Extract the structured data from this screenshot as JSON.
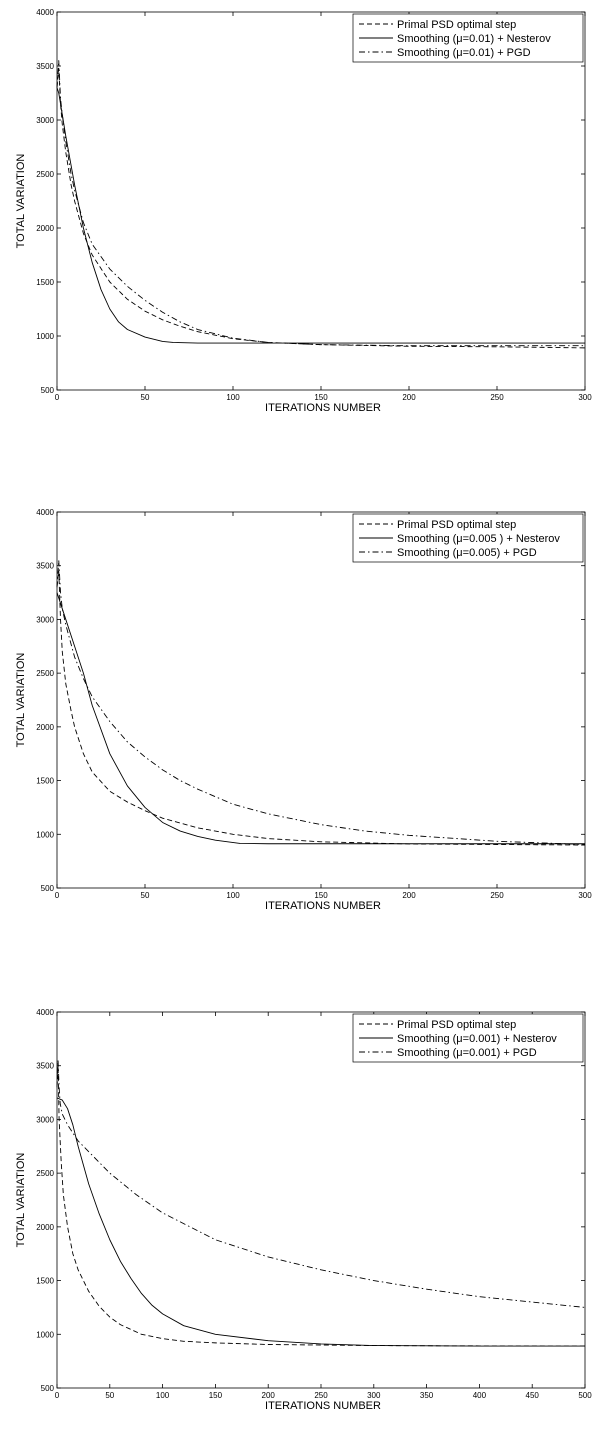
{
  "chart_data": [
    {
      "type": "line",
      "title": "",
      "xlabel": "ITERATIONS NUMBER",
      "ylabel": "TOTAL VARIATION",
      "xlim": [
        0,
        300
      ],
      "ylim": [
        500,
        4000
      ],
      "xticks": [
        0,
        50,
        100,
        150,
        200,
        250,
        300
      ],
      "yticks": [
        500,
        1000,
        1500,
        2000,
        2500,
        3000,
        3500,
        4000
      ],
      "grid": false,
      "legend_position": "top-right",
      "series": [
        {
          "name": "Primal PSD optimal step",
          "style": "dashed",
          "color": "#000000",
          "x": [
            0,
            1,
            2,
            3,
            5,
            8,
            10,
            15,
            20,
            30,
            40,
            50,
            60,
            70,
            80,
            100,
            120,
            150,
            200,
            250,
            300
          ],
          "y": [
            3300,
            3480,
            3150,
            2960,
            2700,
            2400,
            2250,
            1950,
            1750,
            1500,
            1340,
            1230,
            1150,
            1090,
            1040,
            975,
            940,
            920,
            905,
            900,
            890
          ]
        },
        {
          "name": "Smoothing (μ=0.01) + Nesterov",
          "style": "solid",
          "color": "#000000",
          "x": [
            0,
            1,
            2,
            3,
            5,
            10,
            15,
            20,
            25,
            30,
            35,
            40,
            50,
            60,
            66,
            80,
            100,
            150,
            200,
            250,
            300
          ],
          "y": [
            3300,
            3250,
            3150,
            3050,
            2850,
            2400,
            2000,
            1680,
            1430,
            1250,
            1130,
            1060,
            990,
            950,
            940,
            935,
            935,
            935,
            935,
            935,
            935
          ]
        },
        {
          "name": "Smoothing (μ=0.01) + PGD",
          "style": "dashdot",
          "color": "#000000",
          "x": [
            0,
            1,
            2,
            3,
            5,
            8,
            10,
            15,
            20,
            30,
            40,
            50,
            60,
            70,
            80,
            100,
            120,
            150,
            200,
            250,
            300
          ],
          "y": [
            3300,
            3550,
            3200,
            3050,
            2800,
            2500,
            2350,
            2050,
            1850,
            1620,
            1460,
            1330,
            1220,
            1130,
            1060,
            980,
            940,
            920,
            910,
            910,
            910
          ]
        }
      ]
    },
    {
      "type": "line",
      "title": "",
      "xlabel": "ITERATIONS NUMBER",
      "ylabel": "TOTAL VARIATION",
      "xlim": [
        0,
        300
      ],
      "ylim": [
        500,
        4000
      ],
      "xticks": [
        0,
        50,
        100,
        150,
        200,
        250,
        300
      ],
      "yticks": [
        500,
        1000,
        1500,
        2000,
        2500,
        3000,
        3500,
        4000
      ],
      "grid": false,
      "legend_position": "top-right",
      "series": [
        {
          "name": "Primal PSD optimal step",
          "style": "dashed",
          "color": "#000000",
          "x": [
            0,
            1,
            2,
            3,
            5,
            8,
            10,
            15,
            20,
            30,
            40,
            50,
            60,
            80,
            100,
            120,
            150,
            200,
            250,
            300
          ],
          "y": [
            3300,
            3450,
            3000,
            2700,
            2400,
            2150,
            2000,
            1750,
            1580,
            1400,
            1300,
            1220,
            1150,
            1060,
            1000,
            960,
            930,
            910,
            905,
            900
          ]
        },
        {
          "name": "Smoothing (μ=0.005 ) + Nesterov",
          "style": "solid",
          "color": "#000000",
          "x": [
            0,
            1,
            3,
            5,
            10,
            15,
            20,
            30,
            40,
            50,
            60,
            70,
            80,
            90,
            104,
            120,
            150,
            200,
            250,
            300
          ],
          "y": [
            3250,
            3200,
            3100,
            3000,
            2750,
            2500,
            2200,
            1750,
            1450,
            1250,
            1110,
            1030,
            980,
            945,
            915,
            912,
            912,
            912,
            912,
            912
          ]
        },
        {
          "name": "Smoothing (μ=0.005) + PGD",
          "style": "dashdot",
          "color": "#000000",
          "x": [
            0,
            1,
            2,
            3,
            5,
            10,
            15,
            20,
            30,
            40,
            50,
            60,
            70,
            80,
            100,
            120,
            150,
            175,
            200,
            250,
            300
          ],
          "y": [
            3300,
            3550,
            3250,
            3100,
            2950,
            2650,
            2450,
            2280,
            2050,
            1860,
            1720,
            1600,
            1500,
            1420,
            1280,
            1190,
            1090,
            1030,
            990,
            935,
            905
          ]
        }
      ]
    },
    {
      "type": "line",
      "title": "",
      "xlabel": "ITERATIONS NUMBER",
      "ylabel": "TOTAL VARIATION",
      "xlim": [
        0,
        500
      ],
      "ylim": [
        500,
        4000
      ],
      "xticks": [
        0,
        50,
        100,
        150,
        200,
        250,
        300,
        350,
        400,
        450,
        500
      ],
      "yticks": [
        500,
        1000,
        1500,
        2000,
        2500,
        3000,
        3500,
        4000
      ],
      "grid": false,
      "legend_position": "top-right",
      "series": [
        {
          "name": "Primal PSD optimal step",
          "style": "dashed",
          "color": "#000000",
          "x": [
            0,
            1,
            2,
            4,
            6,
            10,
            15,
            20,
            30,
            40,
            50,
            60,
            80,
            100,
            120,
            150,
            200,
            250,
            300,
            400,
            500
          ],
          "y": [
            3300,
            3500,
            3000,
            2600,
            2300,
            2000,
            1750,
            1600,
            1400,
            1260,
            1160,
            1090,
            1000,
            960,
            935,
            920,
            905,
            900,
            895,
            892,
            890
          ]
        },
        {
          "name": "Smoothing (μ=0.001) + Nesterov",
          "style": "solid",
          "color": "#000000",
          "x": [
            0,
            5,
            10,
            15,
            20,
            30,
            40,
            50,
            60,
            70,
            80,
            90,
            100,
            120,
            150,
            200,
            250,
            300,
            400,
            500
          ],
          "y": [
            3200,
            3180,
            3100,
            2950,
            2750,
            2400,
            2120,
            1880,
            1680,
            1520,
            1380,
            1270,
            1190,
            1080,
            1000,
            940,
            910,
            895,
            890,
            890
          ]
        },
        {
          "name": "Smoothing (μ=0.001) + PGD",
          "style": "dashdot",
          "color": "#000000",
          "x": [
            0,
            1,
            2,
            3,
            5,
            10,
            20,
            30,
            50,
            75,
            100,
            150,
            200,
            250,
            300,
            350,
            400,
            450,
            500
          ],
          "y": [
            3300,
            3550,
            3300,
            3150,
            3050,
            2950,
            2800,
            2700,
            2500,
            2300,
            2130,
            1880,
            1720,
            1600,
            1500,
            1420,
            1350,
            1300,
            1250
          ]
        }
      ]
    }
  ]
}
